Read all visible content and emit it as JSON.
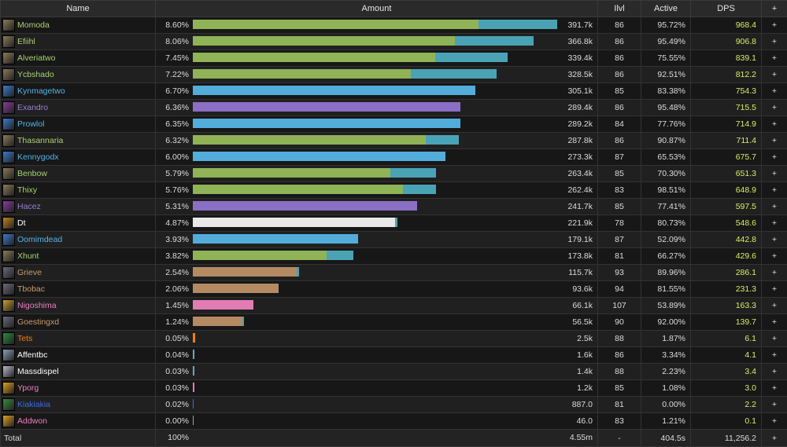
{
  "headers": {
    "name": "Name",
    "amount": "Amount",
    "ilvl": "Ilvl",
    "active": "Active",
    "dps": "DPS",
    "plus": "+"
  },
  "rows": [
    {
      "name": "Momoda",
      "color": "#a9d271",
      "icon": "hunter-icon",
      "iconColor": "#8a7a5a",
      "pct": "8.60%",
      "amount": "391.7k",
      "ilvl": "86",
      "active": "95.72%",
      "dps": "968.4",
      "bar": [
        {
          "w": 0.611,
          "c": "#8fb356"
        },
        {
          "w": 0.168,
          "c": "#4aa3b5"
        }
      ]
    },
    {
      "name": "Efiihl",
      "color": "#a9d271",
      "icon": "hunter-icon",
      "iconColor": "#8a7a5a",
      "pct": "8.06%",
      "amount": "366.8k",
      "ilvl": "86",
      "active": "95.49%",
      "dps": "906.8",
      "bar": [
        {
          "w": 0.561,
          "c": "#8fb356"
        },
        {
          "w": 0.168,
          "c": "#4aa3b5"
        }
      ]
    },
    {
      "name": "Alveriatwo",
      "color": "#a9d271",
      "icon": "hunter-icon",
      "iconColor": "#8a7a5a",
      "pct": "7.45%",
      "amount": "339.4k",
      "ilvl": "86",
      "active": "75.55%",
      "dps": "839.1",
      "bar": [
        {
          "w": 0.519,
          "c": "#8fb356"
        },
        {
          "w": 0.155,
          "c": "#4aa3b5"
        }
      ]
    },
    {
      "name": "Ycbshado",
      "color": "#a9d271",
      "icon": "hunter-icon",
      "iconColor": "#8a7a5a",
      "pct": "7.22%",
      "amount": "328.5k",
      "ilvl": "86",
      "active": "92.51%",
      "dps": "812.2",
      "bar": [
        {
          "w": 0.467,
          "c": "#8fb356"
        },
        {
          "w": 0.183,
          "c": "#4aa3b5"
        }
      ]
    },
    {
      "name": "Kynmagetwo",
      "color": "#52b5e8",
      "icon": "mage-icon",
      "iconColor": "#3a7acc",
      "pct": "6.70%",
      "amount": "305.1k",
      "ilvl": "85",
      "active": "83.38%",
      "dps": "754.3",
      "bar": [
        {
          "w": 0.604,
          "c": "#52addb"
        }
      ]
    },
    {
      "name": "Exandro",
      "color": "#9880d4",
      "icon": "warlock-icon",
      "iconColor": "#8a3a9a",
      "pct": "6.36%",
      "amount": "289.4k",
      "ilvl": "86",
      "active": "95.48%",
      "dps": "715.5",
      "bar": [
        {
          "w": 0.573,
          "c": "#8a6fc4"
        }
      ]
    },
    {
      "name": "Prowlol",
      "color": "#52b5e8",
      "icon": "mage-icon",
      "iconColor": "#3a7acc",
      "pct": "6.35%",
      "amount": "289.2k",
      "ilvl": "84",
      "active": "77.76%",
      "dps": "714.9",
      "bar": [
        {
          "w": 0.573,
          "c": "#52addb"
        }
      ]
    },
    {
      "name": "Thasannaria",
      "color": "#a9d271",
      "icon": "hunter-icon",
      "iconColor": "#8a7a5a",
      "pct": "6.32%",
      "amount": "287.8k",
      "ilvl": "86",
      "active": "90.87%",
      "dps": "711.4",
      "bar": [
        {
          "w": 0.499,
          "c": "#8fb356"
        },
        {
          "w": 0.071,
          "c": "#4aa3b5"
        }
      ]
    },
    {
      "name": "Kennygodx",
      "color": "#52b5e8",
      "icon": "mage-icon",
      "iconColor": "#3a7acc",
      "pct": "6.00%",
      "amount": "273.3k",
      "ilvl": "87",
      "active": "65.53%",
      "dps": "675.7",
      "bar": [
        {
          "w": 0.541,
          "c": "#52addb"
        }
      ]
    },
    {
      "name": "Benbow",
      "color": "#a9d271",
      "icon": "hunter-icon",
      "iconColor": "#8a7a5a",
      "pct": "5.79%",
      "amount": "263.4k",
      "ilvl": "85",
      "active": "70.30%",
      "dps": "651.3",
      "bar": [
        {
          "w": 0.423,
          "c": "#8fb356"
        },
        {
          "w": 0.098,
          "c": "#4aa3b5"
        }
      ]
    },
    {
      "name": "Thixy",
      "color": "#a9d271",
      "icon": "hunter-icon",
      "iconColor": "#8a7a5a",
      "pct": "5.76%",
      "amount": "262.4k",
      "ilvl": "83",
      "active": "98.51%",
      "dps": "648.9",
      "bar": [
        {
          "w": 0.449,
          "c": "#8fb356"
        },
        {
          "w": 0.071,
          "c": "#4aa3b5"
        }
      ]
    },
    {
      "name": "Hacez",
      "color": "#9880d4",
      "icon": "warlock-icon",
      "iconColor": "#8a3a9a",
      "pct": "5.31%",
      "amount": "241.7k",
      "ilvl": "85",
      "active": "77.41%",
      "dps": "597.5",
      "bar": [
        {
          "w": 0.479,
          "c": "#8a6fc4"
        }
      ]
    },
    {
      "name": "Dt",
      "color": "#ffffff",
      "icon": "priest-icon",
      "iconColor": "#c08020",
      "pct": "4.87%",
      "amount": "221.9k",
      "ilvl": "78",
      "active": "80.73%",
      "dps": "548.6",
      "bar": [
        {
          "w": 0.433,
          "c": "#e8e8e8"
        },
        {
          "w": 0.005,
          "c": "#4aa3b5"
        }
      ]
    },
    {
      "name": "Oomimdead",
      "color": "#52b5e8",
      "icon": "mage-icon",
      "iconColor": "#3a7acc",
      "pct": "3.93%",
      "amount": "179.1k",
      "ilvl": "87",
      "active": "52.09%",
      "dps": "442.8",
      "bar": [
        {
          "w": 0.354,
          "c": "#52addb"
        }
      ]
    },
    {
      "name": "Xhunt",
      "color": "#a9d271",
      "icon": "hunter-icon",
      "iconColor": "#8a7a5a",
      "pct": "3.82%",
      "amount": "173.8k",
      "ilvl": "81",
      "active": "66.27%",
      "dps": "429.6",
      "bar": [
        {
          "w": 0.286,
          "c": "#8fb356"
        },
        {
          "w": 0.058,
          "c": "#4aa3b5"
        }
      ]
    },
    {
      "name": "Grieve",
      "color": "#c79c6e",
      "icon": "warrior-icon",
      "iconColor": "#6a6a7a",
      "pct": "2.54%",
      "amount": "115.7k",
      "ilvl": "93",
      "active": "89.96%",
      "dps": "286.1",
      "bar": [
        {
          "w": 0.222,
          "c": "#b48a62"
        },
        {
          "w": 0.005,
          "c": "#4aa3b5"
        }
      ]
    },
    {
      "name": "Tbobac",
      "color": "#c79c6e",
      "icon": "warrior-icon",
      "iconColor": "#6a6a7a",
      "pct": "2.06%",
      "amount": "93.6k",
      "ilvl": "94",
      "active": "81.55%",
      "dps": "231.3",
      "bar": [
        {
          "w": 0.184,
          "c": "#b48a62"
        }
      ]
    },
    {
      "name": "Nigoshima",
      "color": "#ee7ec0",
      "icon": "paladin-icon",
      "iconColor": "#c8a030",
      "pct": "1.45%",
      "amount": "66.1k",
      "ilvl": "107",
      "active": "53.89%",
      "dps": "163.3",
      "bar": [
        {
          "w": 0.129,
          "c": "#e27db3"
        }
      ]
    },
    {
      "name": "Goestingxd",
      "color": "#c79c6e",
      "icon": "warrior-icon",
      "iconColor": "#6a6a7a",
      "pct": "1.24%",
      "amount": "56.5k",
      "ilvl": "90",
      "active": "92.00%",
      "dps": "139.7",
      "bar": [
        {
          "w": 0.106,
          "c": "#b48a62"
        },
        {
          "w": 0.004,
          "c": "#4aa3b5"
        }
      ]
    },
    {
      "name": "Tets",
      "color": "#ff7d0a",
      "icon": "druid-icon",
      "iconColor": "#2a8a3a",
      "pct": "0.05%",
      "amount": "2.5k",
      "ilvl": "88",
      "active": "1.87%",
      "dps": "6.1",
      "bar": [
        {
          "w": 0.005,
          "c": "#ff7d0a"
        }
      ]
    },
    {
      "name": "Affentbc",
      "color": "#ffffff",
      "icon": "priest-icon",
      "iconColor": "#8aa0b8",
      "pct": "0.04%",
      "amount": "1.6k",
      "ilvl": "86",
      "active": "3.34%",
      "dps": "4.1",
      "bar": [
        {
          "w": 0.004,
          "c": "#6aa8c8"
        }
      ]
    },
    {
      "name": "Massdispel",
      "color": "#ffffff",
      "icon": "priest-icon",
      "iconColor": "#b8b8c8",
      "pct": "0.03%",
      "amount": "1.4k",
      "ilvl": "88",
      "active": "2.23%",
      "dps": "3.4",
      "bar": [
        {
          "w": 0.004,
          "c": "#6aa8c8"
        }
      ]
    },
    {
      "name": "Yporg",
      "color": "#ee7ec0",
      "icon": "paladin-icon",
      "iconColor": "#e0a020",
      "pct": "0.03%",
      "amount": "1.2k",
      "ilvl": "85",
      "active": "1.08%",
      "dps": "3.0",
      "bar": [
        {
          "w": 0.003,
          "c": "#e27db3"
        }
      ]
    },
    {
      "name": "Kiakiakia",
      "color": "#3b6ce8",
      "icon": "shaman-icon",
      "iconColor": "#3a8a3a",
      "pct": "0.02%",
      "amount": "887.0",
      "ilvl": "81",
      "active": "0.00%",
      "dps": "2.2",
      "bar": [
        {
          "w": 0.002,
          "c": "#3b6ce8"
        }
      ]
    },
    {
      "name": "Addwon",
      "color": "#ee7ec0",
      "icon": "paladin-icon",
      "iconColor": "#e0a020",
      "pct": "0.00%",
      "amount": "46.0",
      "ilvl": "83",
      "active": "1.21%",
      "dps": "0.1",
      "bar": [
        {
          "w": 0.001,
          "c": "#e27db3"
        }
      ]
    }
  ],
  "total": {
    "label": "Total",
    "pct": "100%",
    "amount": "4.55m",
    "ilvl": "-",
    "active": "404.5s",
    "dps": "11,256.2",
    "plus": "+"
  }
}
